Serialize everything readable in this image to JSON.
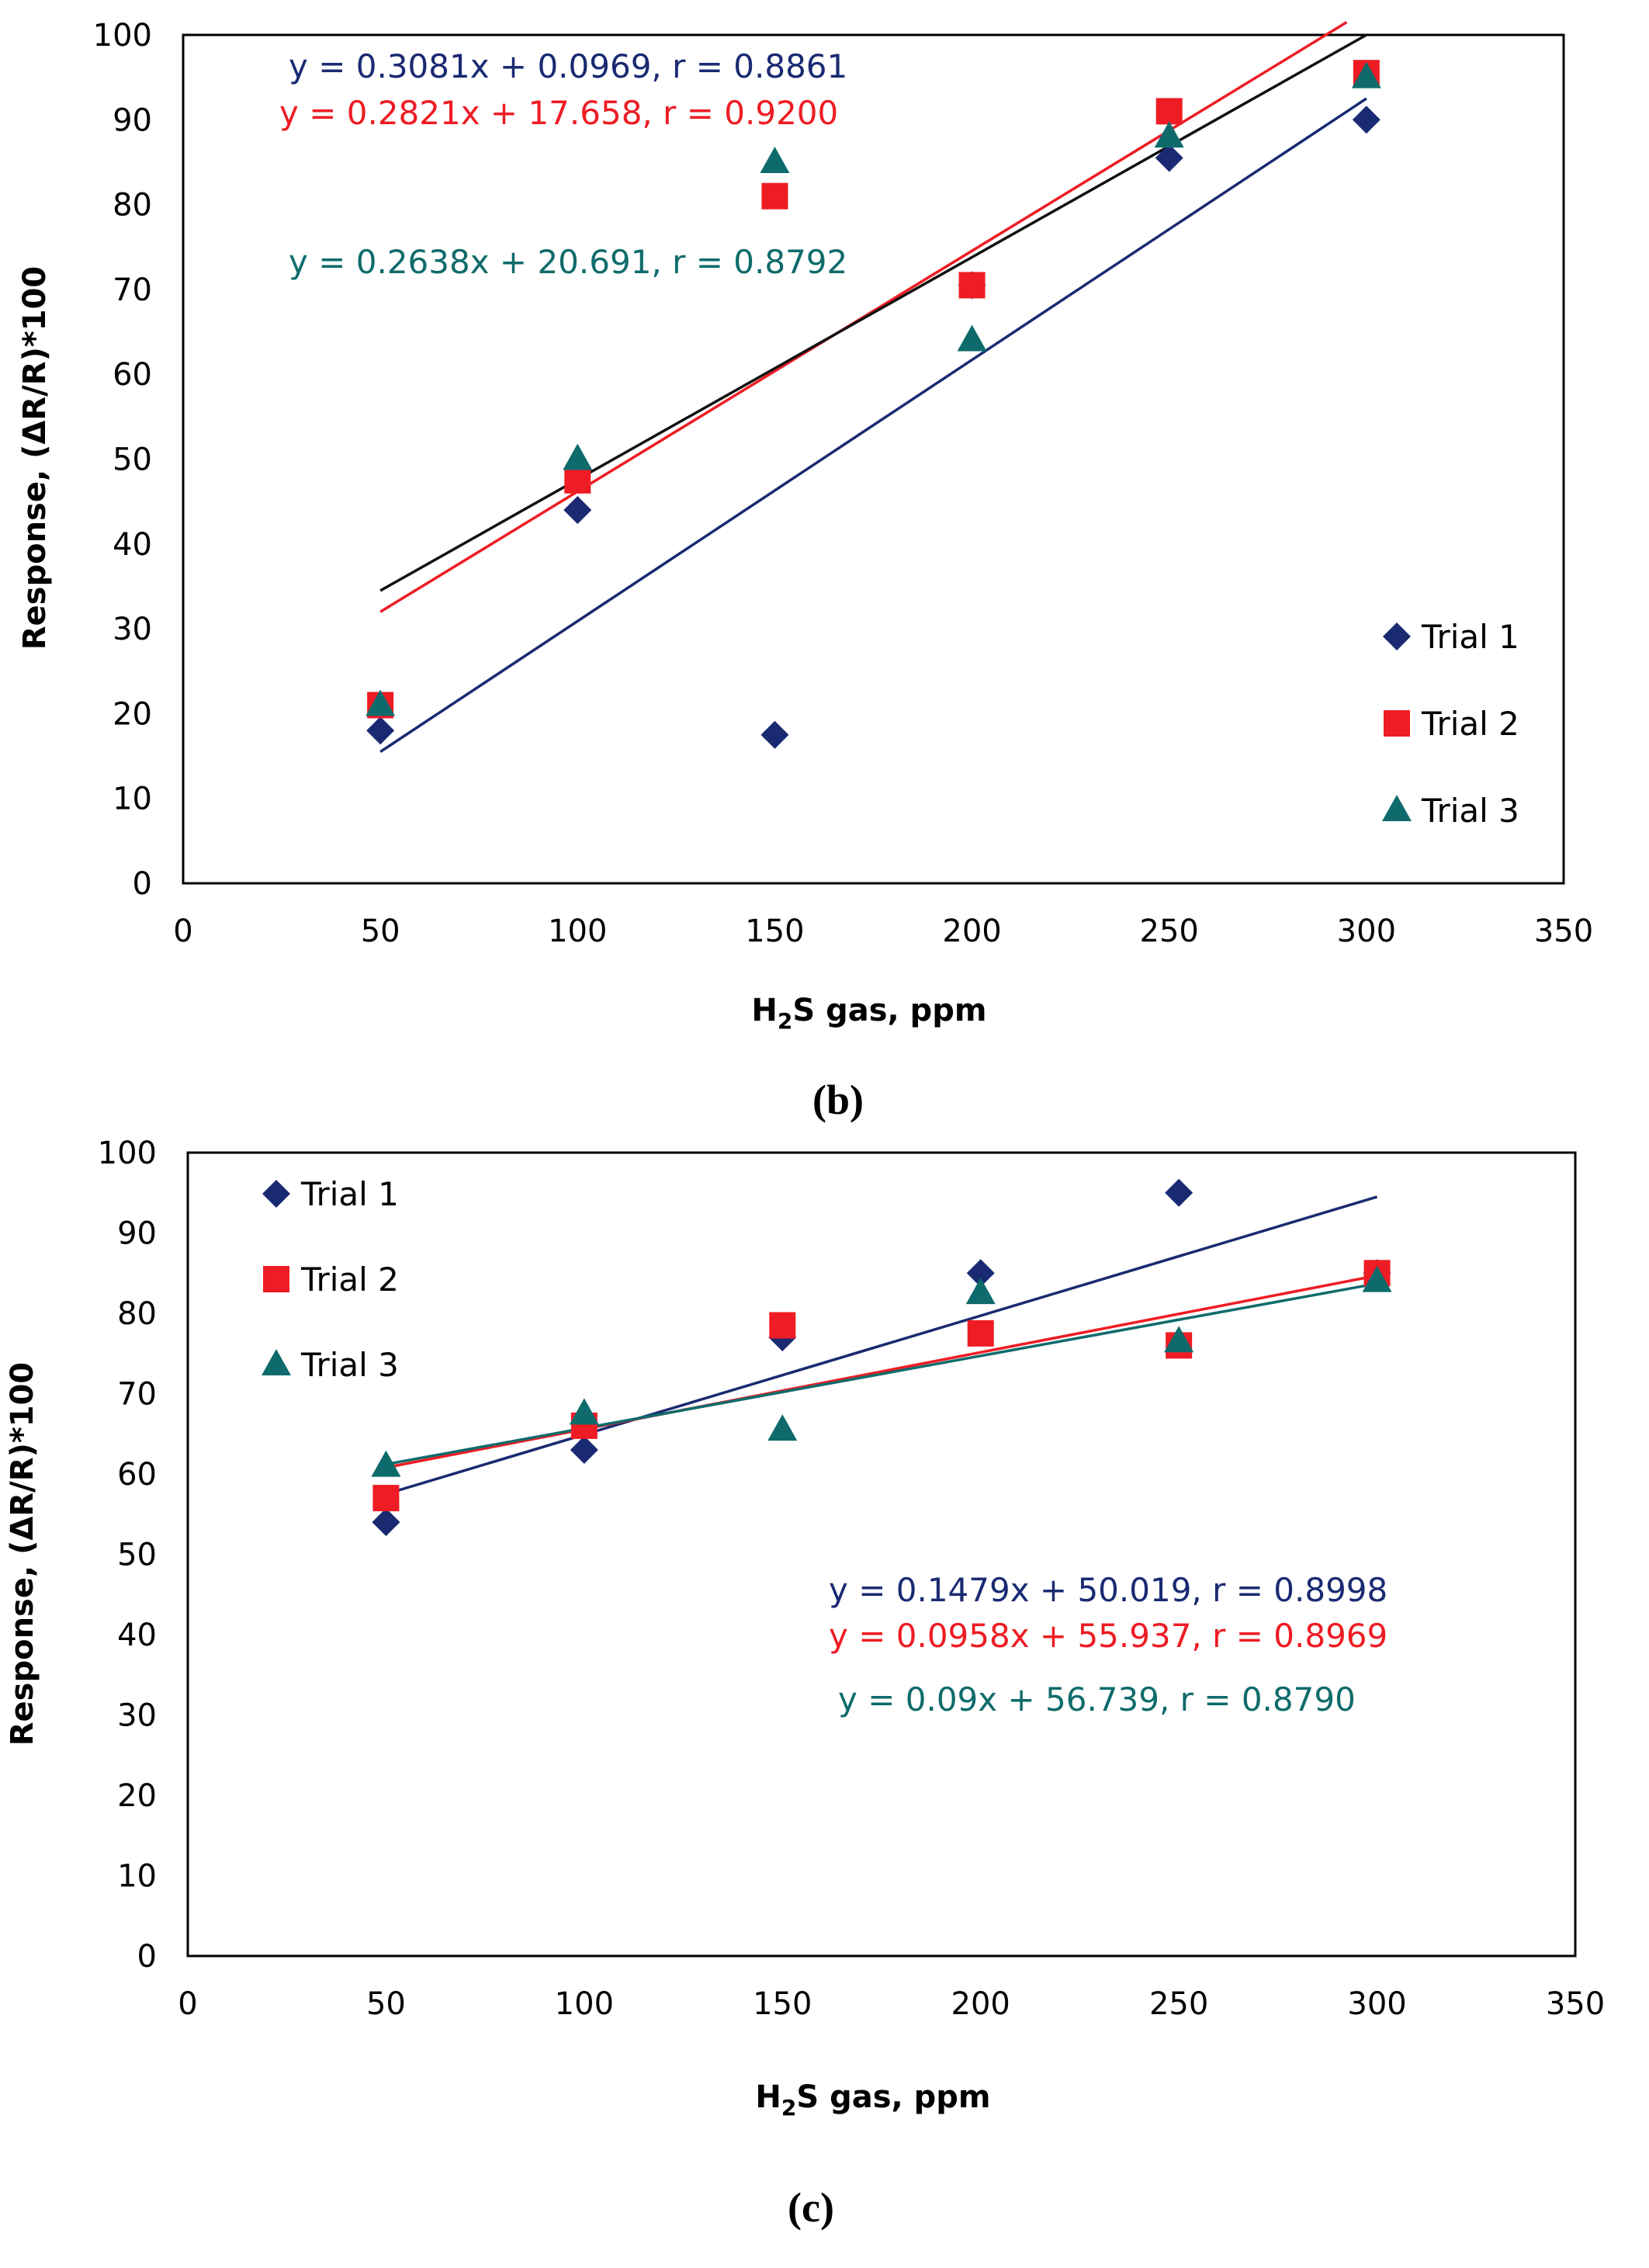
{
  "colors": {
    "trial1": "#1a2a72",
    "trial2": "#ee1c24",
    "trial3": "#0f6b6b",
    "black_fit": "#111111",
    "axis": "#000000"
  },
  "chart_data": [
    {
      "type": "scatter",
      "panel_label": "(b)",
      "xlabel_main": "H",
      "xlabel_sub": "2",
      "xlabel_rest": "S gas,  ppm",
      "ylabel": "Response, (ΔR/R)*100",
      "xlim": [
        0,
        350
      ],
      "ylim": [
        0,
        100
      ],
      "xticks": [
        0,
        50,
        100,
        150,
        200,
        250,
        300,
        350
      ],
      "yticks": [
        0,
        10,
        20,
        30,
        40,
        50,
        60,
        70,
        80,
        90,
        100
      ],
      "legend_position": "bottom-right",
      "series": [
        {
          "name": "Trial 1",
          "marker": "diamond",
          "color_key": "trial1",
          "x": [
            50,
            100,
            150,
            200,
            250,
            300
          ],
          "y": [
            18,
            44,
            17.5,
            70.5,
            85.5,
            90
          ]
        },
        {
          "name": "Trial 2",
          "marker": "square",
          "color_key": "trial2",
          "x": [
            50,
            100,
            150,
            200,
            250,
            300
          ],
          "y": [
            21,
            47.5,
            81,
            70.5,
            91,
            95.5
          ]
        },
        {
          "name": "Trial 3",
          "marker": "triangle",
          "color_key": "trial3",
          "x": [
            50,
            100,
            150,
            200,
            250,
            300
          ],
          "y": [
            21,
            50,
            85,
            64,
            88,
            95
          ]
        }
      ],
      "fit_lines": [
        {
          "color_key": "trial1",
          "x": [
            50,
            300
          ],
          "y": [
            15.5,
            92.5
          ]
        },
        {
          "color_key": "trial2",
          "x": [
            50,
            295
          ],
          "y": [
            32,
            101.5
          ]
        },
        {
          "color_key": "black_fit",
          "x": [
            50,
            300
          ],
          "y": [
            34.5,
            100
          ]
        }
      ],
      "equations": [
        {
          "text": "y = 0.3081x + 0.0969, r = 0.8861",
          "color_key": "trial1"
        },
        {
          "text": "y = 0.2821x + 17.658, r = 0.9200",
          "color_key": "trial2"
        },
        {
          "text": "y = 0.2638x + 20.691, r = 0.8792",
          "color_key": "trial3"
        }
      ]
    },
    {
      "type": "scatter",
      "panel_label": "(c)",
      "xlabel_main": "H",
      "xlabel_sub": "2",
      "xlabel_rest": "S gas,  ppm",
      "ylabel": "Response, (ΔR/R)*100",
      "xlim": [
        0,
        350
      ],
      "ylim": [
        0,
        100
      ],
      "xticks": [
        0,
        50,
        100,
        150,
        200,
        250,
        300,
        350
      ],
      "yticks": [
        0,
        10,
        20,
        30,
        40,
        50,
        60,
        70,
        80,
        90,
        100
      ],
      "legend_position": "top-left",
      "series": [
        {
          "name": "Trial 1",
          "marker": "diamond",
          "color_key": "trial1",
          "x": [
            50,
            100,
            150,
            200,
            250,
            300
          ],
          "y": [
            54,
            63,
            77,
            85,
            95,
            85
          ]
        },
        {
          "name": "Trial 2",
          "marker": "square",
          "color_key": "trial2",
          "x": [
            50,
            100,
            150,
            200,
            250,
            300
          ],
          "y": [
            57,
            66,
            78.5,
            77.5,
            76,
            85
          ]
        },
        {
          "name": "Trial 3",
          "marker": "triangle",
          "color_key": "trial3",
          "x": [
            50,
            100,
            150,
            200,
            250,
            300
          ],
          "y": [
            61,
            67.5,
            65.5,
            82.5,
            76.5,
            84
          ]
        }
      ],
      "fit_lines": [
        {
          "color_key": "trial1",
          "x": [
            50,
            300
          ],
          "y": [
            57.5,
            94.5
          ]
        },
        {
          "color_key": "trial2",
          "x": [
            50,
            300
          ],
          "y": [
            60.8,
            84.7
          ]
        },
        {
          "color_key": "trial3",
          "x": [
            50,
            300
          ],
          "y": [
            61.2,
            83.7
          ]
        }
      ],
      "equations": [
        {
          "text": "y = 0.1479x + 50.019, r = 0.8998",
          "color_key": "trial1"
        },
        {
          "text": "y = 0.0958x + 55.937, r = 0.8969",
          "color_key": "trial2"
        },
        {
          "text": "y = 0.09x + 56.739, r = 0.8790",
          "color_key": "trial3"
        }
      ]
    }
  ]
}
